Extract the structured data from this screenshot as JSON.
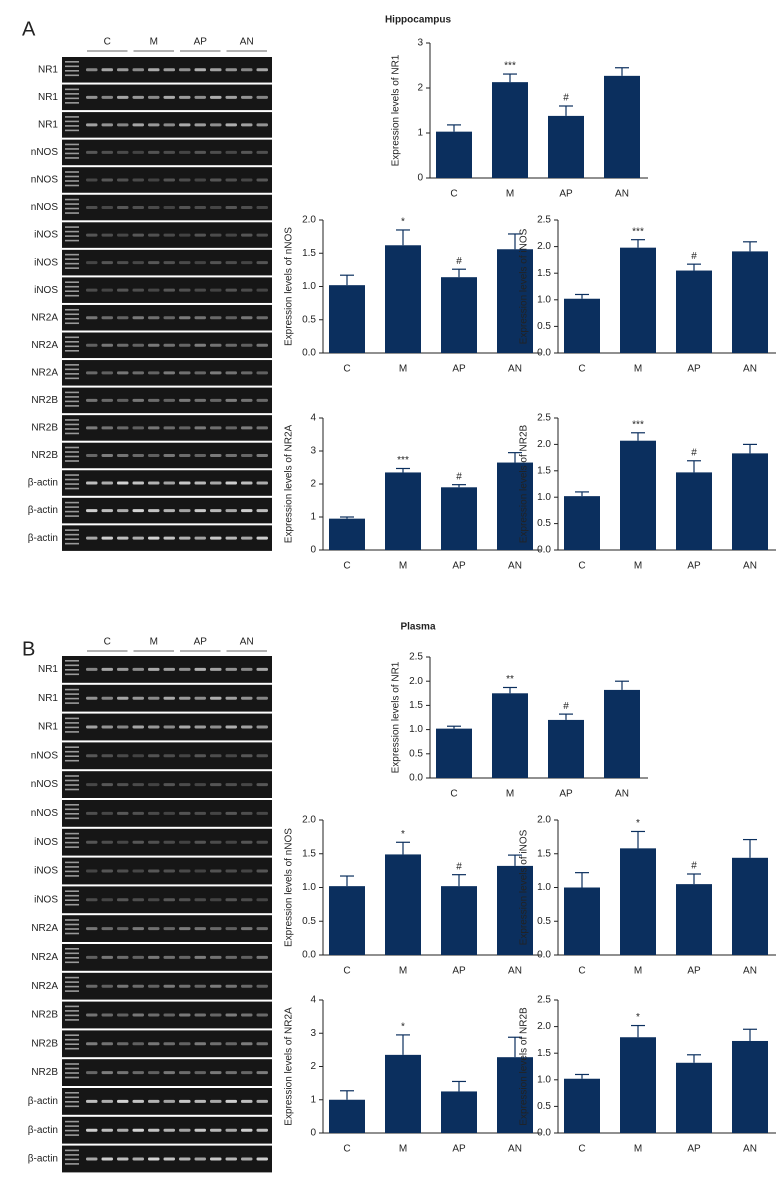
{
  "panels": [
    {
      "label": "A",
      "title": "Hippocampus",
      "gel": {
        "groups": [
          "C",
          "M",
          "AP",
          "AN"
        ],
        "lanes": [
          "NR1",
          "NR1",
          "NR1",
          "nNOS",
          "nNOS",
          "nNOS",
          "iNOS",
          "iNOS",
          "iNOS",
          "NR2A",
          "NR2A",
          "NR2A",
          "NR2B",
          "NR2B",
          "NR2B",
          "β-actin",
          "β-actin",
          "β-actin"
        ]
      }
    },
    {
      "label": "B",
      "title": "Plasma",
      "gel": {
        "groups": [
          "C",
          "M",
          "AP",
          "AN"
        ],
        "lanes": [
          "NR1",
          "NR1",
          "NR1",
          "nNOS",
          "nNOS",
          "nNOS",
          "iNOS",
          "iNOS",
          "iNOS",
          "NR2A",
          "NR2A",
          "NR2A",
          "NR2B",
          "NR2B",
          "NR2B",
          "β-actin",
          "β-actin",
          "β-actin"
        ]
      }
    }
  ],
  "chart_data": [
    {
      "type": "bar",
      "ylabel": "Expression levels of NR1",
      "categories": [
        "C",
        "M",
        "AP",
        "AN"
      ],
      "values": [
        1.03,
        2.13,
        1.38,
        2.27
      ],
      "errors": [
        0.15,
        0.18,
        0.22,
        0.18
      ],
      "annotations": [
        null,
        "***",
        "#",
        null
      ],
      "color": "#0b2f5e",
      "ylim": [
        0,
        3
      ],
      "yticks": [
        0,
        1,
        2,
        3
      ]
    },
    {
      "type": "bar",
      "ylabel": "Expression levels of nNOS",
      "categories": [
        "C",
        "M",
        "AP",
        "AN"
      ],
      "values": [
        1.02,
        1.62,
        1.14,
        1.56
      ],
      "errors": [
        0.15,
        0.23,
        0.12,
        0.23
      ],
      "annotations": [
        null,
        "*",
        "#",
        null
      ],
      "color": "#0b2f5e",
      "ylim": [
        0,
        2
      ],
      "yticks": [
        {
          "value": 0,
          "label": "0.0"
        },
        0.5,
        {
          "value": 1,
          "label": "1.0"
        },
        1.5,
        {
          "value": 2,
          "label": "2.0"
        }
      ]
    },
    {
      "type": "bar",
      "ylabel": "Expression levels of iNOS",
      "categories": [
        "C",
        "M",
        "AP",
        "AN"
      ],
      "values": [
        1.02,
        1.98,
        1.55,
        1.91
      ],
      "errors": [
        0.08,
        0.15,
        0.12,
        0.18
      ],
      "annotations": [
        null,
        "***",
        "#",
        null
      ],
      "color": "#0b2f5e",
      "ylim": [
        0,
        2.5
      ],
      "yticks": [
        {
          "value": 0,
          "label": "0.0"
        },
        0.5,
        {
          "value": 1,
          "label": "1.0"
        },
        1.5,
        {
          "value": 2,
          "label": "2.0"
        },
        2.5
      ]
    },
    {
      "type": "bar",
      "ylabel": "Expression levels of NR2A",
      "categories": [
        "C",
        "M",
        "AP",
        "AN"
      ],
      "values": [
        0.95,
        2.35,
        1.9,
        2.65
      ],
      "errors": [
        0.05,
        0.12,
        0.08,
        0.3
      ],
      "annotations": [
        null,
        "***",
        "#",
        null
      ],
      "color": "#0b2f5e",
      "ylim": [
        0,
        4
      ],
      "yticks": [
        0,
        1,
        2,
        3,
        4
      ]
    },
    {
      "type": "bar",
      "ylabel": "Expression levels of NR2B",
      "categories": [
        "C",
        "M",
        "AP",
        "AN"
      ],
      "values": [
        1.02,
        2.07,
        1.47,
        1.83
      ],
      "errors": [
        0.08,
        0.15,
        0.22,
        0.17
      ],
      "annotations": [
        null,
        "***",
        "#",
        null
      ],
      "color": "#0b2f5e",
      "ylim": [
        0,
        2.5
      ],
      "yticks": [
        {
          "value": 0,
          "label": "0.0"
        },
        0.5,
        {
          "value": 1,
          "label": "1.0"
        },
        1.5,
        {
          "value": 2,
          "label": "2.0"
        },
        2.5
      ]
    },
    {
      "type": "bar",
      "ylabel": "Expression levels of NR1",
      "categories": [
        "C",
        "M",
        "AP",
        "AN"
      ],
      "values": [
        1.02,
        1.75,
        1.2,
        1.82
      ],
      "errors": [
        0.05,
        0.12,
        0.12,
        0.18
      ],
      "annotations": [
        null,
        "**",
        "#",
        null
      ],
      "color": "#0b2f5e",
      "ylim": [
        0,
        2.5
      ],
      "yticks": [
        {
          "value": 0,
          "label": "0.0"
        },
        0.5,
        {
          "value": 1,
          "label": "1.0"
        },
        1.5,
        {
          "value": 2,
          "label": "2.0"
        },
        2.5
      ]
    },
    {
      "type": "bar",
      "ylabel": "Expression levels of nNOS",
      "categories": [
        "C",
        "M",
        "AP",
        "AN"
      ],
      "values": [
        1.02,
        1.49,
        1.02,
        1.32
      ],
      "errors": [
        0.15,
        0.18,
        0.17,
        0.16
      ],
      "annotations": [
        null,
        "*",
        "#",
        null
      ],
      "color": "#0b2f5e",
      "ylim": [
        0,
        2
      ],
      "yticks": [
        {
          "value": 0,
          "label": "0.0"
        },
        0.5,
        {
          "value": 1,
          "label": "1.0"
        },
        1.5,
        {
          "value": 2,
          "label": "2.0"
        }
      ]
    },
    {
      "type": "bar",
      "ylabel": "Expression levels of iNOS",
      "categories": [
        "C",
        "M",
        "AP",
        "AN"
      ],
      "values": [
        1.0,
        1.58,
        1.05,
        1.44
      ],
      "errors": [
        0.22,
        0.25,
        0.15,
        0.27
      ],
      "annotations": [
        null,
        "*",
        "#",
        null
      ],
      "color": "#0b2f5e",
      "ylim": [
        0,
        2
      ],
      "yticks": [
        {
          "value": 0,
          "label": "0.0"
        },
        0.5,
        {
          "value": 1,
          "label": "1.0"
        },
        1.5,
        {
          "value": 2,
          "label": "2.0"
        }
      ]
    },
    {
      "type": "bar",
      "ylabel": "Expression levels of NR2A",
      "categories": [
        "C",
        "M",
        "AP",
        "AN"
      ],
      "values": [
        1.0,
        2.35,
        1.25,
        2.28
      ],
      "errors": [
        0.27,
        0.6,
        0.3,
        0.6
      ],
      "annotations": [
        null,
        "*",
        null,
        null
      ],
      "color": "#0b2f5e",
      "ylim": [
        0,
        4
      ],
      "yticks": [
        0,
        1,
        2,
        3,
        4
      ]
    },
    {
      "type": "bar",
      "ylabel": "Expression levels of NR2B",
      "categories": [
        "C",
        "M",
        "AP",
        "AN"
      ],
      "values": [
        1.02,
        1.8,
        1.32,
        1.73
      ],
      "errors": [
        0.08,
        0.22,
        0.15,
        0.22
      ],
      "annotations": [
        null,
        "*",
        null,
        null
      ],
      "color": "#0b2f5e",
      "ylim": [
        0,
        2.5
      ],
      "yticks": [
        {
          "value": 0,
          "label": "0.0"
        },
        0.5,
        {
          "value": 1,
          "label": "1.0"
        },
        1.5,
        {
          "value": 2,
          "label": "2.0"
        },
        2.5
      ]
    }
  ]
}
